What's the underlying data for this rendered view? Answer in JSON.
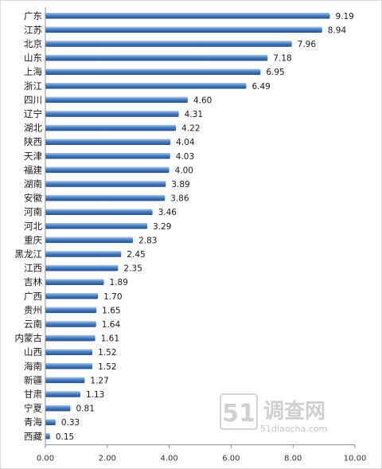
{
  "chart_data": {
    "type": "bar",
    "orientation": "horizontal",
    "categories": [
      "广东",
      "江苏",
      "北京",
      "山东",
      "上海",
      "浙江",
      "四川",
      "辽宁",
      "湖北",
      "陕西",
      "天津",
      "福建",
      "湖南",
      "安徽",
      "河南",
      "河北",
      "重庆",
      "黑龙江",
      "江西",
      "吉林",
      "广西",
      "贵州",
      "云南",
      "内蒙古",
      "山西",
      "海南",
      "新疆",
      "甘肃",
      "宁夏",
      "青海",
      "西藏"
    ],
    "values": [
      9.19,
      8.94,
      7.96,
      7.18,
      6.95,
      6.49,
      4.6,
      4.31,
      4.22,
      4.04,
      4.03,
      4.0,
      3.89,
      3.86,
      3.46,
      3.29,
      2.83,
      2.45,
      2.35,
      1.89,
      1.7,
      1.65,
      1.64,
      1.61,
      1.52,
      1.52,
      1.27,
      1.13,
      0.81,
      0.33,
      0.15
    ],
    "value_labels": [
      "9.19",
      "8.94",
      "7.96",
      "7.18",
      "6.95",
      "6.49",
      "4.60",
      "4.31",
      "4.22",
      "4.04",
      "4.03",
      "4.00",
      "3.89",
      "3.86",
      "3.46",
      "3.29",
      "2.83",
      "2.45",
      "2.35",
      "1.89",
      "1.70",
      "1.65",
      "1.64",
      "1.61",
      "1.52",
      "1.52",
      "1.27",
      "1.13",
      "0.81",
      "0.33",
      "0.15"
    ],
    "xlim": [
      0,
      10
    ],
    "x_ticks": [
      0,
      2,
      4,
      6,
      8,
      10
    ],
    "x_tick_labels": [
      "0.00",
      "2.00",
      "4.00",
      "6.00",
      "8.00",
      "10.00"
    ],
    "grid": false,
    "legend": "none",
    "colors": {
      "bar_top": "#a9c6ea",
      "bar_mid": "#4a7fc1",
      "bar_bottom": "#1f4f8f",
      "axis": "#8c8c8c"
    }
  },
  "watermark": {
    "number": "51",
    "name": "调查网",
    "url": "51diaocha.com"
  }
}
